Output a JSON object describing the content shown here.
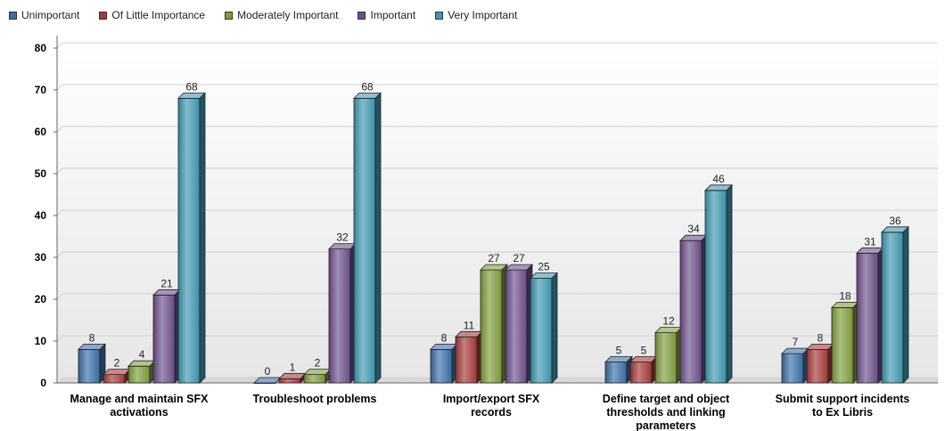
{
  "chart_data": {
    "type": "bar",
    "title": "",
    "xlabel": "",
    "ylabel": "",
    "ylim": [
      0,
      80
    ],
    "yticks": [
      0,
      10,
      20,
      30,
      40,
      50,
      60,
      70,
      80
    ],
    "legend_position": "top-left",
    "categories": [
      [
        "Manage and maintain SFX",
        "activations"
      ],
      [
        "Troubleshoot problems"
      ],
      [
        "Import/export SFX",
        "records"
      ],
      [
        "Define target and object",
        "thresholds and linking",
        "parameters"
      ],
      [
        "Submit support incidents",
        "to Ex Libris"
      ]
    ],
    "series": [
      {
        "name": "Unimportant",
        "color": "#3c6fa6",
        "values": [
          8,
          0,
          8,
          5,
          7
        ]
      },
      {
        "name": "Of Little Importance",
        "color": "#a63a38",
        "values": [
          2,
          1,
          11,
          5,
          8
        ]
      },
      {
        "name": "Moderately Important",
        "color": "#7f9c3c",
        "values": [
          4,
          2,
          27,
          12,
          18
        ]
      },
      {
        "name": "Important",
        "color": "#6c4f8c",
        "values": [
          21,
          32,
          27,
          34,
          31
        ]
      },
      {
        "name": "Very Important",
        "color": "#3e98b0",
        "values": [
          68,
          68,
          25,
          46,
          36
        ]
      }
    ]
  }
}
